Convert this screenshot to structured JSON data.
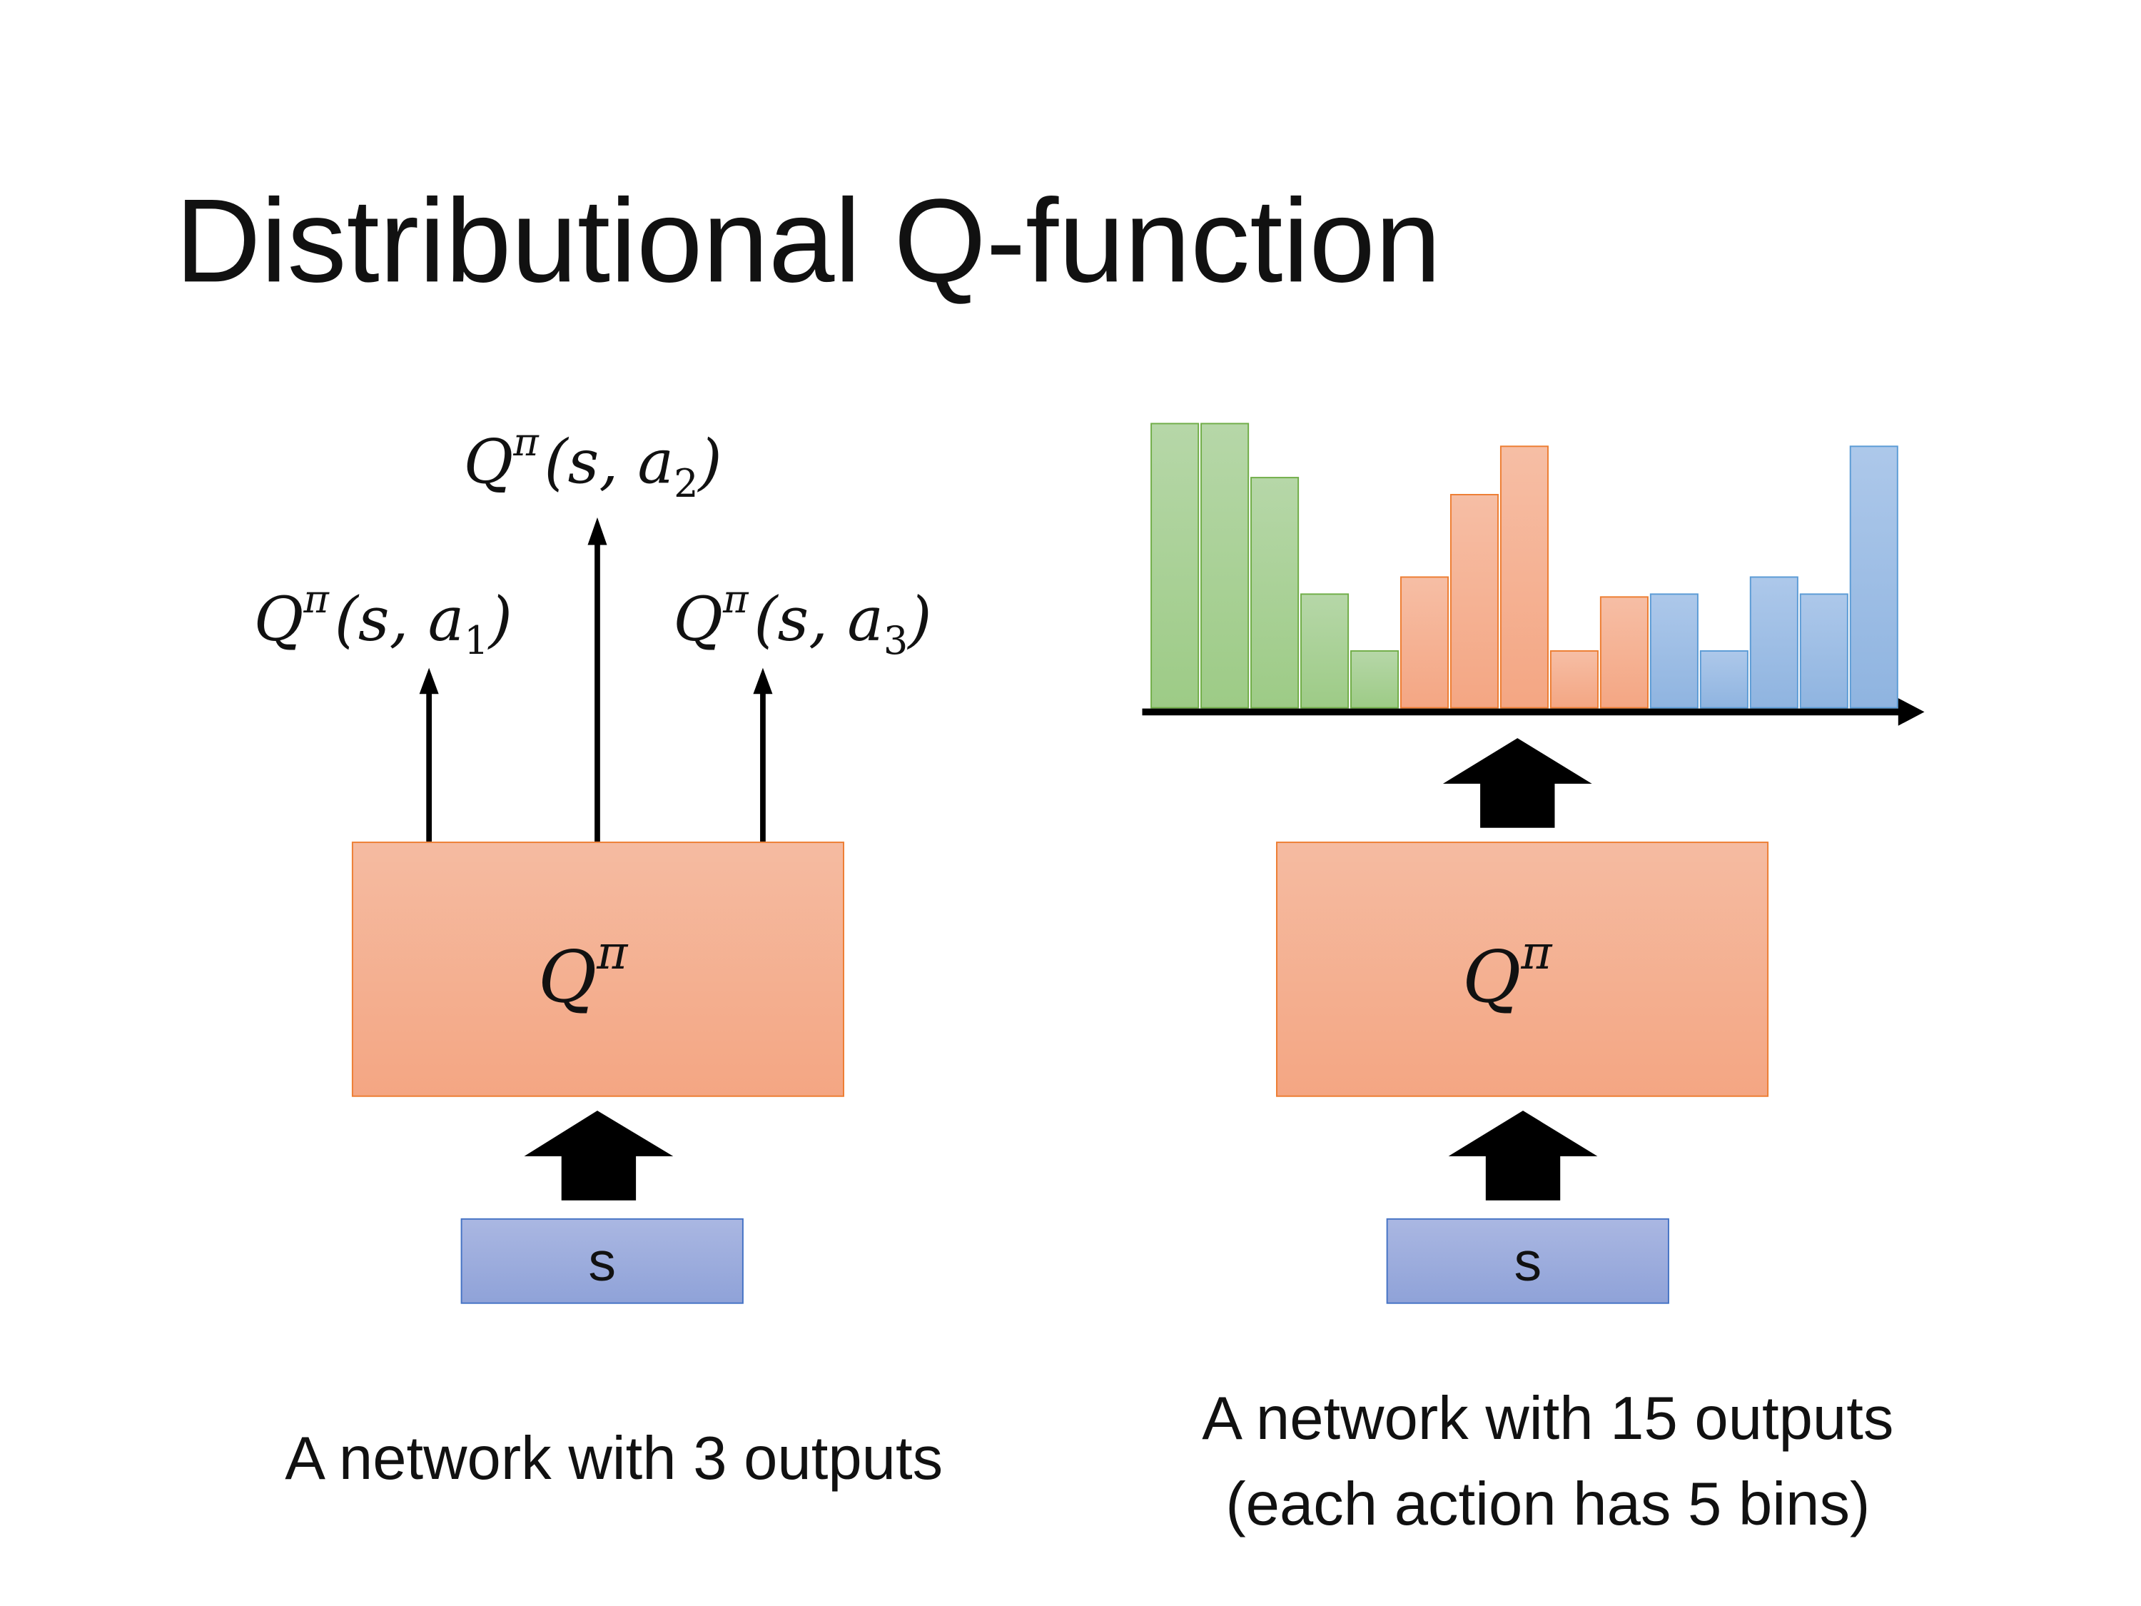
{
  "title": "Distributional Q-function",
  "left": {
    "outputs": [
      {
        "q": "Q",
        "sup": "π",
        "open": "(s, a",
        "sub": "1",
        "close": ")"
      },
      {
        "q": "Q",
        "sup": "π",
        "open": "(s, a",
        "sub": "2",
        "close": ")"
      },
      {
        "q": "Q",
        "sup": "π",
        "open": "(s, a",
        "sub": "3",
        "close": ")"
      }
    ],
    "network": {
      "q": "Q",
      "sup": "π"
    },
    "input": "s",
    "caption": "A network with 3 outputs"
  },
  "right": {
    "network": {
      "q": "Q",
      "sup": "π"
    },
    "input": "s",
    "caption_line1": "A network with 15 outputs",
    "caption_line2": "(each action has 5 bins)"
  },
  "chart_data": {
    "type": "bar",
    "title": "",
    "xlabel": "",
    "ylabel": "",
    "grid": false,
    "categories": [
      "a1-bin1",
      "a1-bin2",
      "a1-bin3",
      "a1-bin4",
      "a1-bin5",
      "a2-bin1",
      "a2-bin2",
      "a2-bin3",
      "a2-bin4",
      "a2-bin5",
      "a3-bin1",
      "a3-bin2",
      "a3-bin3",
      "a3-bin4",
      "a3-bin5"
    ],
    "values": [
      1.0,
      1.0,
      0.81,
      0.4,
      0.2,
      0.46,
      0.75,
      0.92,
      0.2,
      0.39,
      0.4,
      0.2,
      0.46,
      0.4,
      0.92
    ],
    "groups": [
      {
        "action": "a1",
        "color": "#a8d192",
        "border": "#70ad47"
      },
      {
        "action": "a2",
        "color": "#f5b091",
        "border": "#ed7d31"
      },
      {
        "action": "a3",
        "color": "#9fbfe6",
        "border": "#5b9bd5"
      }
    ],
    "ylim": [
      0,
      1
    ]
  },
  "colors": {
    "network_fill_top": "#f5bba1",
    "network_fill_bottom": "#f4a683",
    "network_border": "#ed7d31",
    "input_fill_top": "#aab7e2",
    "input_fill_bottom": "#8fa2d8",
    "input_border": "#4472c4"
  }
}
